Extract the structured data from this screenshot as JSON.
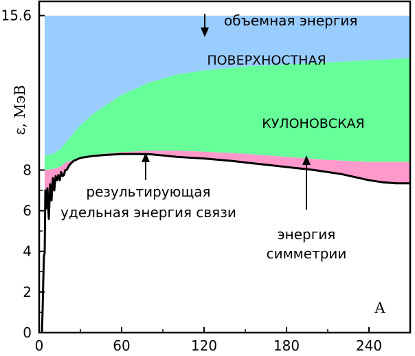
{
  "chart_data": {
    "type": "area",
    "title": "",
    "xlabel": "A",
    "ylabel": "ε, МэВ",
    "xlim": [
      0,
      270
    ],
    "ylim": [
      0,
      16.3
    ],
    "grid": false,
    "x_ticks": [
      "0",
      "60",
      "120",
      "180",
      "240"
    ],
    "y_ticks": [
      "0",
      "2",
      "4",
      "6",
      "8",
      "15.6"
    ],
    "x_tick_values": [
      0,
      60,
      120,
      180,
      240
    ],
    "y_tick_values": [
      0,
      2,
      4,
      6,
      8,
      15.6
    ],
    "volume_energy": 15.6,
    "series": [
      {
        "name": "ПОВЕРХНОСТНАЯ",
        "color": "#99ccff",
        "x": [
          4,
          10,
          15,
          20,
          30,
          40,
          60,
          80,
          100,
          120,
          150,
          180,
          210,
          240,
          270
        ],
        "y": [
          15.6,
          15.6,
          15.6,
          15.6,
          15.6,
          15.6,
          15.6,
          15.6,
          15.6,
          15.6,
          15.6,
          15.6,
          15.6,
          15.6,
          15.6
        ]
      },
      {
        "name": "КУЛОНОВСКАЯ",
        "color": "#66ff99",
        "x": [
          4,
          10,
          15,
          20,
          30,
          40,
          60,
          80,
          100,
          120,
          150,
          180,
          210,
          240,
          270
        ],
        "y": [
          8.7,
          8.8,
          9.0,
          9.4,
          10.2,
          10.8,
          11.7,
          12.3,
          12.7,
          12.9,
          13.1,
          13.2,
          13.3,
          13.4,
          13.5
        ]
      },
      {
        "name": "энергия симметрии",
        "color": "#ff99cc",
        "x": [
          4,
          10,
          15,
          20,
          30,
          40,
          60,
          80,
          100,
          120,
          150,
          180,
          210,
          240,
          270
        ],
        "y": [
          8.0,
          8.05,
          8.15,
          8.4,
          8.6,
          8.75,
          8.88,
          8.95,
          8.95,
          8.9,
          8.8,
          8.65,
          8.5,
          8.4,
          8.4
        ]
      }
    ],
    "binding_energy": {
      "name": "результирующая удельная энергия связи",
      "color": "#000000",
      "x": [
        2,
        2.5,
        3,
        3.5,
        4,
        4.5,
        5,
        6,
        7,
        8,
        9,
        10,
        11,
        12,
        13,
        14,
        15,
        16,
        17,
        18,
        19,
        20,
        22,
        25,
        30,
        40,
        50,
        60,
        70,
        80,
        90,
        100,
        120,
        140,
        160,
        180,
        200,
        210,
        220,
        230,
        240,
        250,
        260,
        270
      ],
      "y": [
        0,
        1.1,
        2.6,
        3.8,
        3.9,
        7.0,
        6.1,
        7.1,
        5.6,
        7.3,
        6.5,
        7.6,
        7.0,
        7.7,
        7.5,
        7.75,
        7.5,
        7.9,
        7.7,
        7.75,
        8.0,
        8.0,
        8.25,
        8.45,
        8.6,
        8.7,
        8.75,
        8.79,
        8.79,
        8.78,
        8.72,
        8.65,
        8.57,
        8.45,
        8.3,
        8.15,
        8.0,
        7.9,
        7.8,
        7.65,
        7.5,
        7.4,
        7.35,
        7.35
      ]
    },
    "band_labels": [
      "ПОВЕРХНОСТНАЯ",
      "КУЛОНОВСКАЯ"
    ],
    "annotations": {
      "volume": "объемная энергия",
      "result_line1": "результирующая",
      "result_line2": "удельная энергия связи",
      "symmetry_line1": "энергия",
      "symmetry_line2": "симметрии"
    }
  }
}
